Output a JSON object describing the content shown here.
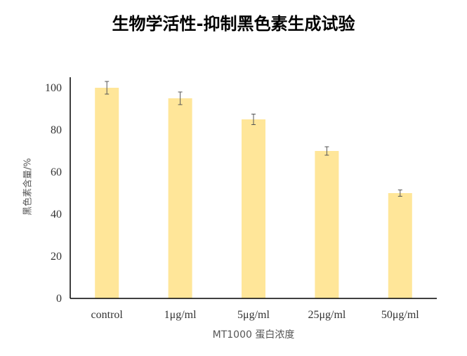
{
  "chart_data": {
    "type": "bar",
    "title": "生物学活性-抑制黑色素生成试验",
    "xlabel": "MT1000 蛋白浓度",
    "ylabel": "黑色素含量/%",
    "categories": [
      "control",
      "1μg/ml",
      "5μg/ml",
      "25μg/ml",
      "50μg/ml"
    ],
    "values": [
      100,
      95,
      85,
      70,
      50
    ],
    "errors": [
      3,
      3,
      2.5,
      2,
      1.5
    ],
    "ylim": [
      0,
      100
    ],
    "yticks": [
      0,
      20,
      40,
      60,
      80,
      100
    ],
    "grid": false,
    "legend": "none",
    "colors": {
      "bar": "#ffe699",
      "error": "#555555",
      "axis": "#000000"
    }
  }
}
